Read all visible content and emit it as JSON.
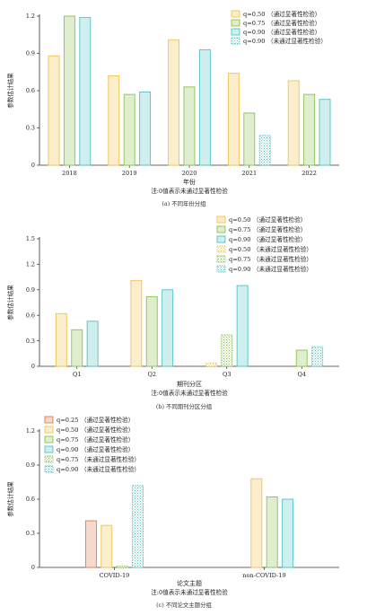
{
  "colors": {
    "q025": "#E07A50",
    "q050": "#F2C24E",
    "q075": "#8CC152",
    "q090": "#54C2C2"
  },
  "chart_data": [
    {
      "type": "bar",
      "ylabel": "参数估计结果",
      "xlabel": "年份",
      "note": "注:0值表示未通过显著性检验",
      "caption": "(a) 不同年份分组",
      "ylim": [
        0,
        1.2
      ],
      "yticks": [
        "0",
        "0.3",
        "0.6",
        "0.9",
        "1.2"
      ],
      "categories": [
        "2018",
        "2019",
        "2020",
        "2021",
        "2022"
      ],
      "legend": [
        {
          "q": "q=0.50",
          "text": "（通过显著性检验）",
          "color": "q050",
          "sig": true
        },
        {
          "q": "q=0.75",
          "text": "（通过显著性检验）",
          "color": "q075",
          "sig": true
        },
        {
          "q": "q=0.90",
          "text": "（通过显著性检验）",
          "color": "q090",
          "sig": true
        },
        {
          "q": "q=0.90",
          "text": "（未通过显著性检验）",
          "color": "q090",
          "sig": false
        }
      ],
      "series": [
        {
          "q": "q=0.50",
          "color": "q050",
          "values": [
            0.88,
            0.72,
            1.01,
            0.74,
            0.68
          ],
          "sig": [
            true,
            true,
            true,
            true,
            true
          ]
        },
        {
          "q": "q=0.75",
          "color": "q075",
          "values": [
            1.2,
            0.57,
            0.63,
            0.42,
            0.57
          ],
          "sig": [
            true,
            true,
            true,
            true,
            true
          ]
        },
        {
          "q": "q=0.90",
          "color": "q090",
          "values": [
            1.19,
            0.59,
            0.93,
            0.24,
            0.53
          ],
          "sig": [
            true,
            true,
            true,
            false,
            true
          ]
        }
      ]
    },
    {
      "type": "bar",
      "ylabel": "参数估计结果",
      "xlabel": "期刊分区",
      "note": "注:0值表示未通过显著性检验",
      "caption": "(b) 不同期刊分区分组",
      "ylim": [
        0,
        1.5
      ],
      "yticks": [
        "0",
        "0.3",
        "0.6",
        "0.9",
        "1.2",
        "1.5"
      ],
      "categories": [
        "Q1",
        "Q2",
        "Q3",
        "Q4"
      ],
      "legend": [
        {
          "q": "q=0.50",
          "text": "（通过显著性检验）",
          "color": "q050",
          "sig": true
        },
        {
          "q": "q=0.75",
          "text": "（通过显著性检验）",
          "color": "q075",
          "sig": true
        },
        {
          "q": "q=0.90",
          "text": "（通过显著性检验）",
          "color": "q090",
          "sig": true
        },
        {
          "q": "q=0.50",
          "text": "（未通过显著性检验）",
          "color": "q050",
          "sig": false
        },
        {
          "q": "q=0.75",
          "text": "（未通过显著性检验）",
          "color": "q075",
          "sig": false
        },
        {
          "q": "q=0.90",
          "text": "（未通过显著性检验）",
          "color": "q090",
          "sig": false
        }
      ],
      "series": [
        {
          "q": "q=0.50",
          "color": "q050",
          "values": [
            0.62,
            1.01,
            0.04,
            0
          ],
          "sig": [
            true,
            true,
            false,
            true
          ]
        },
        {
          "q": "q=0.75",
          "color": "q075",
          "values": [
            0.43,
            0.82,
            0.37,
            0.19
          ],
          "sig": [
            true,
            true,
            false,
            true
          ]
        },
        {
          "q": "q=0.90",
          "color": "q090",
          "values": [
            0.53,
            0.9,
            0.95,
            0.23
          ],
          "sig": [
            true,
            true,
            true,
            false
          ]
        }
      ]
    },
    {
      "type": "bar",
      "ylabel": "参数估计结果",
      "xlabel": "论文主题",
      "note": "注:0值表示未通过显著性检验",
      "caption": "(c) 不同论文主题分组",
      "ylim": [
        0,
        1.2
      ],
      "yticks": [
        "0",
        "0.3",
        "0.6",
        "0.9",
        "1.2"
      ],
      "categories": [
        "COVID-19",
        "non-COVID-19"
      ],
      "legend": [
        {
          "q": "q=0.25",
          "text": "（通过显著性检验）",
          "color": "q025",
          "sig": true
        },
        {
          "q": "q=0.50",
          "text": "（通过显著性检验）",
          "color": "q050",
          "sig": true
        },
        {
          "q": "q=0.75",
          "text": "（通过显著性检验）",
          "color": "q075",
          "sig": true
        },
        {
          "q": "q=0.90",
          "text": "（通过显著性检验）",
          "color": "q090",
          "sig": true
        },
        {
          "q": "q=0.75",
          "text": "（未通过显著性检验）",
          "color": "q075",
          "sig": false
        },
        {
          "q": "q=0.90",
          "text": "（未通过显著性检验）",
          "color": "q090",
          "sig": false
        }
      ],
      "series": [
        {
          "q": "q=0.25",
          "color": "q025",
          "values": [
            0.41,
            0
          ],
          "sig": [
            true,
            true
          ]
        },
        {
          "q": "q=0.50",
          "color": "q050",
          "values": [
            0.37,
            0.78
          ],
          "sig": [
            true,
            true
          ]
        },
        {
          "q": "q=0.75",
          "color": "q075",
          "values": [
            0.01,
            0.62
          ],
          "sig": [
            false,
            true
          ]
        },
        {
          "q": "q=0.90",
          "color": "q090",
          "values": [
            0.72,
            0.6
          ],
          "sig": [
            false,
            true
          ]
        }
      ]
    }
  ]
}
